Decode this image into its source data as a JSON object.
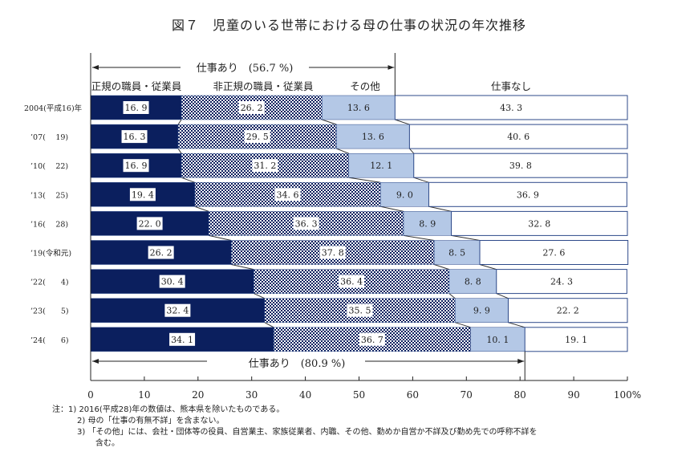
{
  "title": "図７　児童のいる世帯における母の仕事の状況の年次推移",
  "chart_data": {
    "type": "bar",
    "orientation": "horizontal",
    "stacked": true,
    "title": "図７　児童のいる世帯における母の仕事の状況の年次推移",
    "categories": [
      "2004(平成16)年",
      "’07(　 19)",
      "’10(　 22)",
      "’13(　 25)",
      "’16(　 28)",
      "’19(令和元)",
      "’22(　　4)",
      "’23(　　5)",
      "’24(　　6)"
    ],
    "series": [
      {
        "name": "正規の職員・従業員",
        "color": "#0b1f5e",
        "values": [
          16.9,
          16.3,
          16.9,
          19.4,
          22.0,
          26.2,
          30.4,
          32.4,
          34.1
        ]
      },
      {
        "name": "非正規の職員・従業員",
        "color": "#0b1f5e",
        "pattern": "checker",
        "values": [
          26.2,
          29.5,
          31.2,
          34.6,
          36.3,
          37.8,
          36.4,
          35.5,
          36.7
        ]
      },
      {
        "name": "その他",
        "color": "#b4c8e6",
        "values": [
          13.6,
          13.6,
          12.1,
          9.0,
          8.9,
          8.5,
          8.8,
          9.9,
          10.1
        ]
      },
      {
        "name": "仕事なし",
        "color": "#ffffff",
        "values": [
          43.3,
          40.6,
          39.8,
          36.9,
          32.8,
          27.6,
          24.3,
          22.2,
          19.1
        ]
      }
    ],
    "xlim": [
      0,
      100
    ],
    "xticks": [
      "0",
      "10",
      "20",
      "30",
      "40",
      "50",
      "60",
      "70",
      "80",
      "90",
      "100%"
    ],
    "annotations": {
      "top": "仕事あり　(56.7 %)",
      "top_value": 56.7,
      "bottom": "仕事あり　(80.9 %)",
      "bottom_value": 80.9
    },
    "grid": false
  },
  "notes": [
    "注：1)  2016(平成28)年の数値は、熊本県を除いたものである。",
    "2)  母の「仕事の有無不詳」を含まない。",
    "3)  「その他」には、会社・団体等の役員、自営業主、家族従業者、内職、その他、勤めか自営か不詳及び勤め先での呼称不詳を",
    "含む。"
  ]
}
